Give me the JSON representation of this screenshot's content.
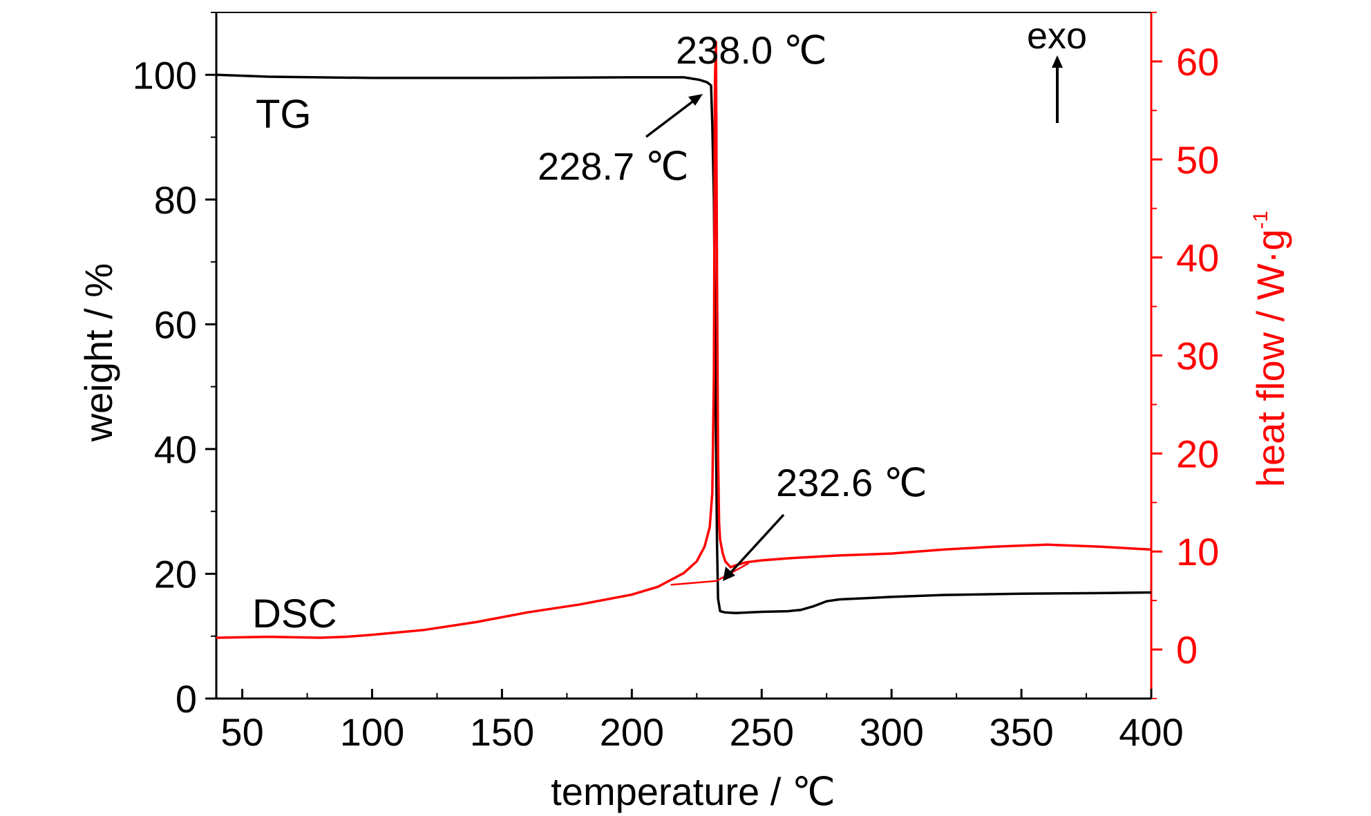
{
  "chart_data": {
    "type": "line",
    "xlabel": "temperature / ℃",
    "ylabel_left": "weight / %",
    "ylabel_right": "heat flow / W·g",
    "ylabel_right_superscript": "-1",
    "xlim": [
      40,
      400
    ],
    "ylim_left": [
      0,
      110
    ],
    "ylim_right": [
      -5,
      65
    ],
    "x_ticks": [
      50,
      100,
      150,
      200,
      250,
      300,
      350,
      400
    ],
    "x_tick_labels": [
      "50",
      "100",
      "150",
      "200",
      "250",
      "300",
      "350",
      "400"
    ],
    "y_left_ticks": [
      0,
      20,
      40,
      60,
      80,
      100
    ],
    "y_left_tick_labels": [
      "0",
      "20",
      "40",
      "60",
      "80",
      "100"
    ],
    "y_right_ticks": [
      0,
      10,
      20,
      30,
      40,
      50,
      60
    ],
    "y_right_tick_labels": [
      "0",
      "10",
      "20",
      "30",
      "40",
      "50",
      "60"
    ],
    "grid": false,
    "colors": {
      "tg": "#000000",
      "dsc": "#ff0000",
      "axis_right": "#ff0000"
    },
    "series": [
      {
        "name": "TG",
        "axis": "left",
        "x": [
          40,
          60,
          100,
          150,
          200,
          220,
          226,
          229,
          230.5,
          231,
          231.6,
          232.2,
          232.8,
          233.2,
          234,
          236,
          240,
          250,
          260,
          265,
          270,
          275,
          280,
          300,
          320,
          350,
          380,
          400
        ],
        "y": [
          100,
          99.7,
          99.5,
          99.5,
          99.6,
          99.6,
          99.2,
          98.8,
          98.3,
          92,
          80,
          50,
          25,
          16,
          14,
          13.8,
          13.7,
          13.9,
          14.0,
          14.2,
          14.8,
          15.6,
          15.9,
          16.3,
          16.6,
          16.8,
          16.9,
          17.0
        ]
      },
      {
        "name": "DSC",
        "axis": "right",
        "x": [
          40,
          60,
          80,
          90,
          100,
          120,
          140,
          160,
          180,
          200,
          210,
          220,
          225,
          228,
          230,
          231,
          231.6,
          232,
          232.4,
          232.8,
          233.2,
          233.6,
          234,
          235,
          236,
          238,
          240,
          244,
          250,
          260,
          280,
          300,
          320,
          340,
          360,
          380,
          400
        ],
        "y": [
          1.2,
          1.3,
          1.2,
          1.3,
          1.5,
          2.0,
          2.8,
          3.8,
          4.6,
          5.6,
          6.4,
          7.8,
          9.0,
          10.5,
          12.5,
          16.0,
          28.0,
          58.0,
          62.0,
          38.0,
          20.0,
          13.0,
          11.2,
          9.8,
          9.0,
          8.4,
          8.6,
          8.9,
          9.1,
          9.3,
          9.6,
          9.8,
          10.2,
          10.5,
          10.7,
          10.5,
          10.2
        ]
      },
      {
        "name": "DSC baseline",
        "axis": "right",
        "x": [
          215,
          232.6,
          245
        ],
        "y": [
          6.6,
          7.0,
          8.8
        ]
      }
    ],
    "series_labels": [
      "TG",
      "DSC"
    ],
    "annotations": [
      {
        "text": "238.0 ℃",
        "x": 238.0
      },
      {
        "text": "228.7 ℃",
        "x": 228.7
      },
      {
        "text": "232.6 ℃",
        "x": 232.6
      },
      {
        "text": "exo"
      }
    ]
  }
}
